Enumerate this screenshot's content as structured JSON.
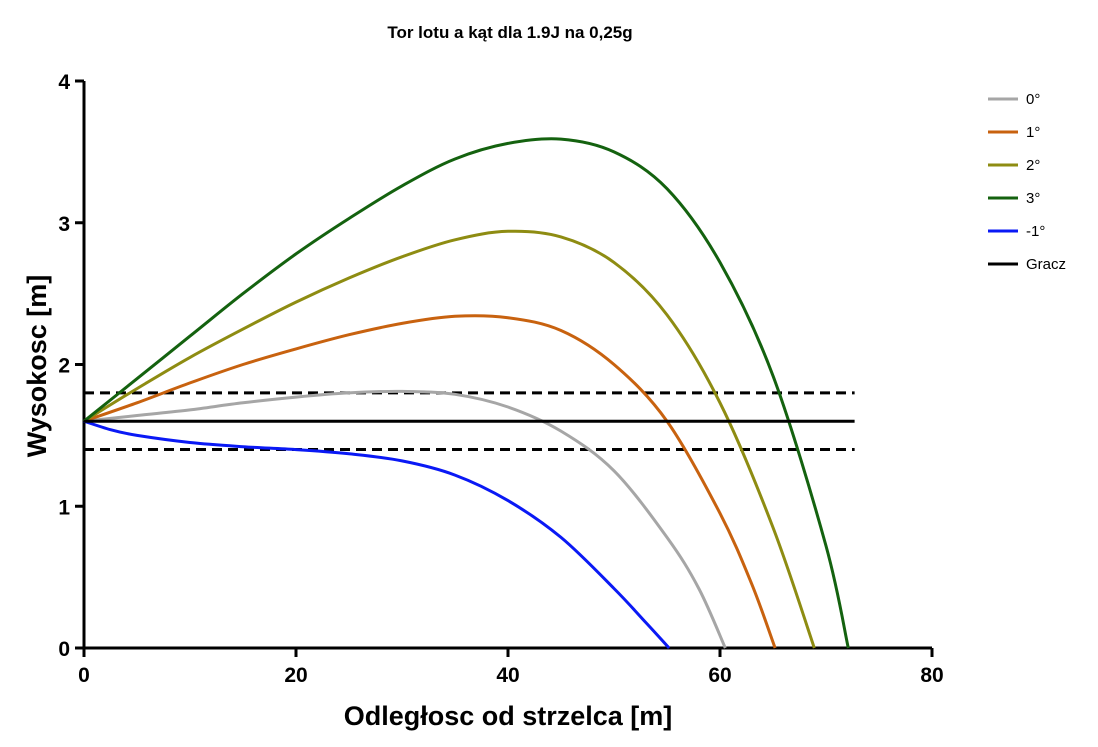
{
  "chart_data": {
    "type": "line",
    "title": "Tor lotu a kąt dla 1.9J na 0,25g",
    "xlabel": "Odległosc od strzelca [m]",
    "ylabel": "Wysokosc [m]",
    "xlim": [
      0,
      80
    ],
    "ylim": [
      0,
      4
    ],
    "xticks": [
      0,
      20,
      40,
      60,
      80
    ],
    "yticks": [
      0,
      1,
      2,
      3,
      4
    ],
    "grid": false,
    "legend_position": "top-right",
    "series": [
      {
        "name": "0°",
        "color": "#a6a6a6",
        "x": [
          0,
          5,
          10,
          15,
          20,
          25,
          30,
          35,
          40,
          45,
          50,
          55,
          58,
          60.5
        ],
        "y": [
          1.6,
          1.64,
          1.68,
          1.73,
          1.77,
          1.8,
          1.81,
          1.79,
          1.7,
          1.53,
          1.25,
          0.78,
          0.42,
          0
        ]
      },
      {
        "name": "1°",
        "color": "#c8620f",
        "x": [
          0,
          5,
          10,
          15,
          20,
          25,
          30,
          35,
          40,
          45,
          50,
          55,
          60,
          63,
          65.2
        ],
        "y": [
          1.6,
          1.73,
          1.87,
          2.0,
          2.11,
          2.21,
          2.29,
          2.34,
          2.33,
          2.24,
          2.0,
          1.6,
          0.95,
          0.45,
          0
        ]
      },
      {
        "name": "2°",
        "color": "#8e8c12",
        "x": [
          0,
          5,
          10,
          15,
          20,
          25,
          30,
          35,
          40,
          45,
          50,
          55,
          60,
          65,
          68.9
        ],
        "y": [
          1.6,
          1.83,
          2.05,
          2.25,
          2.44,
          2.61,
          2.76,
          2.88,
          2.94,
          2.9,
          2.72,
          2.35,
          1.73,
          0.85,
          0
        ]
      },
      {
        "name": "3°",
        "color": "#14620f",
        "x": [
          0,
          5,
          10,
          15,
          20,
          25,
          30,
          35,
          40,
          45,
          50,
          55,
          60,
          65,
          70,
          72.1
        ],
        "y": [
          1.6,
          1.9,
          2.2,
          2.5,
          2.78,
          3.03,
          3.26,
          3.45,
          3.56,
          3.59,
          3.5,
          3.24,
          2.72,
          1.92,
          0.72,
          0
        ]
      },
      {
        "name": "-1°",
        "color": "#0a19f5",
        "x": [
          0,
          2.5,
          5,
          10,
          15,
          20,
          25,
          30,
          35,
          40,
          45,
          50,
          53,
          55.2
        ],
        "y": [
          1.6,
          1.54,
          1.5,
          1.45,
          1.42,
          1.4,
          1.37,
          1.32,
          1.22,
          1.04,
          0.78,
          0.42,
          0.18,
          0
        ]
      },
      {
        "name": "Gracz",
        "color": "#000000",
        "x": [
          0,
          72.7
        ],
        "y": [
          1.6,
          1.6
        ]
      }
    ],
    "reference_lines": [
      {
        "y": 1.8,
        "style": "dashed",
        "color": "#000000",
        "x": [
          0,
          72.7
        ]
      },
      {
        "y": 1.4,
        "style": "dashed",
        "color": "#000000",
        "x": [
          0,
          72.7
        ]
      }
    ]
  }
}
